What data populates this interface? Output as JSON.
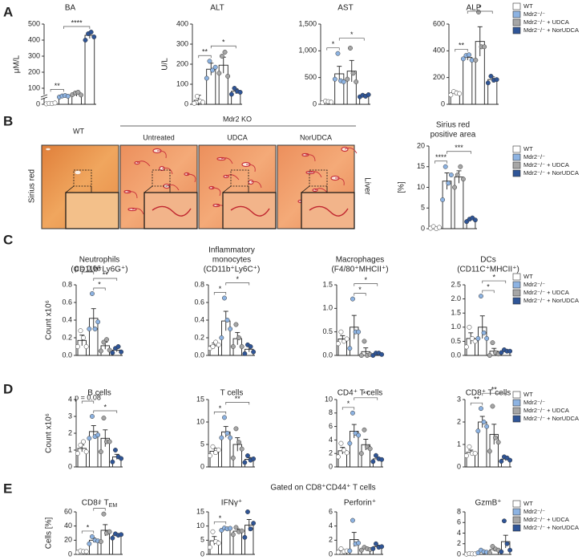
{
  "panel_labels": [
    "A",
    "B",
    "C",
    "D",
    "E"
  ],
  "legend": {
    "entries": [
      {
        "name": "WT",
        "color": "#ffffff"
      },
      {
        "name": "Mdr2⁻/⁻",
        "color": "#8db3e2"
      },
      {
        "name": "Mdr2⁻/⁻ + UDCA",
        "color": "#a6a6a6"
      },
      {
        "name": "Mdr2⁻/⁻ + NorUDCA",
        "color": "#2f5597"
      }
    ]
  },
  "bar_color": "#ffffff",
  "histology": {
    "row_label": "Sirius red",
    "group_label": "Mdr2 KO",
    "side_label": "Liver",
    "labels": [
      "WT",
      "Untreated",
      "UDCA",
      "NorUDCA"
    ]
  },
  "gated_label": "Gated on CD8⁺CD44⁺ T cells",
  "chart_data": [
    {
      "type": "bar",
      "title": [
        "BA"
      ],
      "ylabel": "μM/L",
      "axis_break": true,
      "categories": [
        null,
        null,
        null,
        null
      ],
      "values": [
        5,
        50,
        65,
        430
      ],
      "errors": [
        3,
        8,
        15,
        20
      ],
      "points": [
        [
          3,
          6,
          4,
          8
        ],
        [
          45,
          52,
          55,
          50
        ],
        [
          60,
          70,
          75,
          58
        ],
        [
          400,
          440,
          450,
          420
        ]
      ],
      "ylim": [
        0,
        500
      ],
      "yticks": [
        0,
        100,
        200,
        300,
        400,
        500
      ],
      "significance": [
        {
          "from": 0,
          "to": 1,
          "label": "**"
        },
        {
          "from": 1,
          "to": 3,
          "label": "****"
        }
      ]
    },
    {
      "type": "bar",
      "title": [
        "ALT"
      ],
      "ylabel": "U/L",
      "categories": [
        null,
        null,
        null,
        null
      ],
      "values": [
        20,
        175,
        195,
        65
      ],
      "errors": [
        25,
        30,
        40,
        12
      ],
      "points": [
        [
          5,
          40,
          15,
          10
        ],
        [
          130,
          215,
          170,
          185
        ],
        [
          155,
          240,
          260,
          140
        ],
        [
          50,
          80,
          65,
          60
        ]
      ],
      "ylim": [
        0,
        400
      ],
      "yticks": [
        0,
        100,
        200,
        300,
        400
      ],
      "significance": [
        {
          "from": 0,
          "to": 1,
          "label": "**"
        },
        {
          "from": 1,
          "to": 3,
          "label": "*"
        }
      ]
    },
    {
      "type": "bar",
      "title": [
        "AST"
      ],
      "categories": [
        null,
        null,
        null,
        null
      ],
      "values": [
        50,
        570,
        620,
        160
      ],
      "errors": [
        20,
        140,
        200,
        20
      ],
      "points": [
        [
          30,
          60,
          50,
          40
        ],
        [
          470,
          950,
          440,
          420
        ],
        [
          470,
          1050,
          580,
          420
        ],
        [
          140,
          170,
          150,
          180
        ]
      ],
      "ylim": [
        0,
        1500
      ],
      "yticks": [
        0,
        500,
        {
          "value": 1000,
          "label": "1,000"
        },
        {
          "value": 1500,
          "label": "1,500"
        }
      ],
      "significance": [
        {
          "from": 0,
          "to": 1,
          "label": "*"
        },
        {
          "from": 1,
          "to": 3,
          "label": "*"
        }
      ]
    },
    {
      "type": "bar",
      "title": [
        "ALP"
      ],
      "categories": [
        null,
        null,
        null,
        null
      ],
      "values": [
        85,
        350,
        470,
        185
      ],
      "errors": [
        15,
        20,
        110,
        20
      ],
      "points": [
        [
          70,
          95,
          85,
          80
        ],
        [
          340,
          365,
          370,
          330
        ],
        [
          330,
          690,
          430,
          430
        ],
        [
          160,
          210,
          180,
          185
        ]
      ],
      "ylim": [
        0,
        600
      ],
      "yticks": [
        0,
        200,
        400,
        600
      ],
      "significance": [
        {
          "from": 0,
          "to": 1,
          "label": "**"
        },
        {
          "from": 1,
          "to": 3,
          "label": "*"
        }
      ]
    },
    {
      "type": "bar",
      "title": [
        "Sirius red",
        "positive area"
      ],
      "ylabel": "[%]",
      "categories": [
        null,
        null,
        null,
        null
      ],
      "values": [
        0.2,
        11.5,
        12.5,
        2.2
      ],
      "errors": [
        0.2,
        2,
        1.5,
        0.3
      ],
      "points": [
        [
          0.1,
          0.5,
          0.0,
          0.3
        ],
        [
          7,
          15,
          11,
          13
        ],
        [
          10,
          13,
          15,
          12
        ],
        [
          1.7,
          2.3,
          2.6,
          2.1
        ]
      ],
      "ylim": [
        0,
        20
      ],
      "yticks": [
        0,
        5,
        10,
        15,
        20
      ],
      "significance": [
        {
          "from": 0,
          "to": 1,
          "label": "****"
        },
        {
          "from": 1,
          "to": 3,
          "label": "***"
        }
      ]
    },
    {
      "type": "bar",
      "title": [
        "Neutrophils",
        "(CD11b⁺Ly6G⁺)"
      ],
      "ylabel": "Count x10⁶",
      "categories": [
        null,
        null,
        null,
        null
      ],
      "values": [
        0.17,
        0.42,
        0.11,
        0.06
      ],
      "errors": [
        0.06,
        0.11,
        0.04,
        0.02
      ],
      "points": [
        [
          0.1,
          0.28,
          0.2,
          0.1
        ],
        [
          0.3,
          0.7,
          0.3,
          0.38
        ],
        [
          0.05,
          0.15,
          0.18,
          0.06
        ],
        [
          0.03,
          0.08,
          0.1,
          0.04
        ]
      ],
      "ylim": [
        0,
        0.8
      ],
      "yticks": [
        {
          "value": 0,
          "label": "0.0"
        },
        0.2,
        0.4,
        0.6,
        0.8
      ],
      "significance": [
        {
          "from": 1,
          "to": 2,
          "label": "*"
        },
        {
          "from": 1,
          "to": 3,
          "label": "**"
        },
        {
          "from": 0,
          "to": 1,
          "label": "p = 0.06"
        }
      ]
    },
    {
      "type": "bar",
      "title": [
        "Inflammatory",
        "monocytes",
        "(CD11b⁺Ly6C⁺)"
      ],
      "categories": [
        null,
        null,
        null,
        null
      ],
      "values": [
        0.11,
        0.39,
        0.19,
        0.07
      ],
      "errors": [
        0.03,
        0.11,
        0.07,
        0.03
      ],
      "points": [
        [
          0.08,
          0.1,
          0.15,
          0.12
        ],
        [
          0.2,
          0.65,
          0.4,
          0.3
        ],
        [
          0.1,
          0.35,
          0.2,
          0.1
        ],
        [
          0.02,
          0.12,
          0.1,
          0.04
        ]
      ],
      "ylim": [
        0,
        0.8
      ],
      "yticks": [
        {
          "value": 0,
          "label": "0.0"
        },
        0.2,
        0.4,
        0.6,
        0.8
      ],
      "significance": [
        {
          "from": 0,
          "to": 1,
          "label": "*"
        },
        {
          "from": 1,
          "to": 3,
          "label": "*"
        }
      ]
    },
    {
      "type": "bar",
      "title": [
        "Macrophages",
        "(F4/80⁺MHCII⁺)"
      ],
      "categories": [
        null,
        null,
        null,
        null
      ],
      "values": [
        0.35,
        0.6,
        0.08,
        0.03
      ],
      "errors": [
        0.07,
        0.25,
        0.08,
        0.02
      ],
      "points": [
        [
          0.25,
          0.5,
          0.3,
          0.35
        ],
        [
          0.15,
          1.2,
          0.5,
          0.5
        ],
        [
          0.0,
          0.3,
          0.0,
          0.02
        ],
        [
          0.0,
          0.05,
          0.05,
          0.02
        ]
      ],
      "ylim": [
        0,
        1.5
      ],
      "yticks": [
        {
          "value": 0,
          "label": "0.0"
        },
        0.5,
        {
          "value": 1,
          "label": "1.0"
        },
        1.5
      ],
      "significance": [
        {
          "from": 1,
          "to": 2,
          "label": "*"
        },
        {
          "from": 1,
          "to": 3,
          "label": "*"
        }
      ]
    },
    {
      "type": "bar",
      "title": [
        "DCs",
        "(CD11C⁺MHCII⁺)"
      ],
      "categories": [
        null,
        null,
        null,
        null
      ],
      "values": [
        0.6,
        1.0,
        0.15,
        0.15
      ],
      "errors": [
        0.2,
        0.4,
        0.1,
        0.05
      ],
      "points": [
        [
          0.3,
          1.0,
          0.6,
          0.5
        ],
        [
          0.6,
          2.1,
          0.8,
          0.6
        ],
        [
          0.0,
          0.45,
          0.1,
          0.05
        ],
        [
          0.1,
          0.2,
          0.15,
          0.15
        ]
      ],
      "ylim": [
        0,
        2.5
      ],
      "yticks": [
        {
          "value": 0,
          "label": "0.0"
        },
        0.5,
        {
          "value": 1,
          "label": "1.0"
        },
        1.5,
        {
          "value": 2,
          "label": "2.0"
        },
        2.5
      ],
      "significance": [
        {
          "from": 1,
          "to": 2,
          "label": "*"
        },
        {
          "from": 1,
          "to": 3,
          "label": "*"
        }
      ]
    },
    {
      "type": "bar",
      "title": [
        "B cells"
      ],
      "ylabel": "Count x10⁶",
      "categories": [
        null,
        null,
        null,
        null
      ],
      "values": [
        1.1,
        2.1,
        1.7,
        0.6
      ],
      "errors": [
        0.2,
        0.35,
        0.5,
        0.15
      ],
      "points": [
        [
          0.8,
          1.3,
          1.5,
          0.9
        ],
        [
          1.7,
          3.0,
          1.8,
          1.9
        ],
        [
          0.9,
          2.9,
          1.5,
          1.5
        ],
        [
          0.3,
          1.0,
          0.6,
          0.5
        ]
      ],
      "ylim": [
        0,
        4
      ],
      "yticks": [
        0,
        1,
        2,
        3,
        4
      ],
      "significance": [
        {
          "from": 1,
          "to": 3,
          "label": "*"
        },
        {
          "from": 0,
          "to": 1,
          "label": "p = 0.08"
        }
      ]
    },
    {
      "type": "bar",
      "title": [
        "T cells"
      ],
      "categories": [
        null,
        null,
        null,
        null
      ],
      "values": [
        3.5,
        7.8,
        5.0,
        1.7
      ],
      "errors": [
        0.7,
        1.2,
        1.5,
        0.4
      ],
      "points": [
        [
          2.5,
          4.5,
          3.2,
          3.8
        ],
        [
          6.5,
          11,
          7.5,
          6.5
        ],
        [
          2.0,
          8.5,
          5.5,
          4.0
        ],
        [
          1.0,
          2.5,
          1.5,
          1.8
        ]
      ],
      "ylim": [
        0,
        15
      ],
      "yticks": [
        0,
        5,
        10,
        15
      ],
      "significance": [
        {
          "from": 0,
          "to": 1,
          "label": "*"
        },
        {
          "from": 1,
          "to": 3,
          "label": "**"
        }
      ]
    },
    {
      "type": "bar",
      "title": [
        "CD4⁺ T cells"
      ],
      "categories": [
        null,
        null,
        null,
        null
      ],
      "values": [
        2.4,
        5.3,
        3.3,
        1.2
      ],
      "errors": [
        0.5,
        1.0,
        0.8,
        0.2
      ],
      "points": [
        [
          1.5,
          3.5,
          2.5,
          2.1
        ],
        [
          3.5,
          8.0,
          5.0,
          4.7
        ],
        [
          2.0,
          5.5,
          3.0,
          2.7
        ],
        [
          0.8,
          1.7,
          1.2,
          1.1
        ]
      ],
      "ylim": [
        0,
        10
      ],
      "yticks": [
        0,
        2,
        4,
        6,
        8,
        10
      ],
      "significance": [
        {
          "from": 0,
          "to": 1,
          "label": "*"
        },
        {
          "from": 1,
          "to": 3,
          "label": "**"
        }
      ]
    },
    {
      "type": "bar",
      "title": [
        "CD8⁺ T cells"
      ],
      "categories": [
        null,
        null,
        null,
        null
      ],
      "values": [
        0.65,
        2.0,
        1.45,
        0.35
      ],
      "errors": [
        0.1,
        0.25,
        0.45,
        0.07
      ],
      "points": [
        [
          0.5,
          0.9,
          0.6,
          0.6
        ],
        [
          1.6,
          2.6,
          2.0,
          1.8
        ],
        [
          0.7,
          2.7,
          1.3,
          1.1
        ],
        [
          0.25,
          0.45,
          0.4,
          0.3
        ]
      ],
      "ylim": [
        0,
        3
      ],
      "yticks": [
        0,
        1,
        2,
        3
      ],
      "significance": [
        {
          "from": 0,
          "to": 1,
          "label": "**"
        },
        {
          "from": 1,
          "to": 3,
          "label": "**"
        }
      ]
    },
    {
      "type": "bar",
      "title": [
        "CD8⁺ T"
      ],
      "title_subscript": "EM",
      "ylabel": "Cells [%]",
      "categories": [
        null,
        null,
        null,
        null
      ],
      "values": [
        4,
        20,
        34,
        27
      ],
      "errors": [
        1.5,
        3,
        8,
        2
      ],
      "points": [
        [
          3,
          5,
          4,
          4
        ],
        [
          15,
          25,
          20,
          19
        ],
        [
          18,
          57,
          30,
          32
        ],
        [
          23,
          29,
          27,
          28
        ]
      ],
      "ylim": [
        0,
        60
      ],
      "yticks": [
        0,
        20,
        40,
        60
      ],
      "significance": [
        {
          "from": 0,
          "to": 1,
          "label": "*"
        },
        {
          "from": 1,
          "to": 2,
          "label": "*"
        }
      ]
    },
    {
      "type": "bar",
      "title": [
        "IFNγ⁺"
      ],
      "categories": [
        null,
        null,
        null,
        null
      ],
      "values": [
        4.8,
        9,
        8.2,
        10.3
      ],
      "errors": [
        1.5,
        0.5,
        0.8,
        2
      ],
      "points": [
        [
          2.5,
          8,
          4.5,
          4
        ],
        [
          8.5,
          9.3,
          9,
          9.2
        ],
        [
          7,
          9.5,
          8,
          8.3
        ],
        [
          6,
          15,
          9,
          11
        ]
      ],
      "ylim": [
        0,
        15
      ],
      "yticks": [
        0,
        5,
        10,
        15
      ],
      "significance": [
        {
          "from": 0,
          "to": 1,
          "label": "*"
        }
      ]
    },
    {
      "type": "bar",
      "title": [
        "Perforin⁺"
      ],
      "categories": [
        null,
        null,
        null,
        null
      ],
      "values": [
        0.5,
        2.1,
        0.8,
        1.1
      ],
      "errors": [
        0.15,
        1.0,
        0.15,
        0.2
      ],
      "points": [
        [
          0.3,
          0.8,
          0.4,
          0.5
        ],
        [
          0.5,
          4.8,
          1.5,
          1.6
        ],
        [
          0.6,
          1.0,
          0.8,
          0.7
        ],
        [
          0.8,
          1.5,
          1.0,
          1.1
        ]
      ],
      "ylim": [
        0,
        6
      ],
      "yticks": [
        0,
        2,
        4,
        6
      ],
      "significance": []
    },
    {
      "type": "bar",
      "title": [
        "GzmB⁺"
      ],
      "categories": [
        null,
        null,
        null,
        null
      ],
      "values": [
        0.1,
        0.5,
        0.9,
        2.4
      ],
      "errors": [
        0.05,
        0.15,
        0.3,
        1.2
      ],
      "points": [
        [
          0.05,
          0.15,
          0.1,
          0.1
        ],
        [
          0.3,
          0.8,
          0.5,
          0.4
        ],
        [
          0.3,
          1.5,
          1.0,
          0.8
        ],
        [
          0.5,
          6.3,
          2.0,
          0.8
        ]
      ],
      "ylim": [
        0,
        8
      ],
      "yticks": [
        0,
        2,
        4,
        6,
        8
      ],
      "significance": []
    }
  ]
}
